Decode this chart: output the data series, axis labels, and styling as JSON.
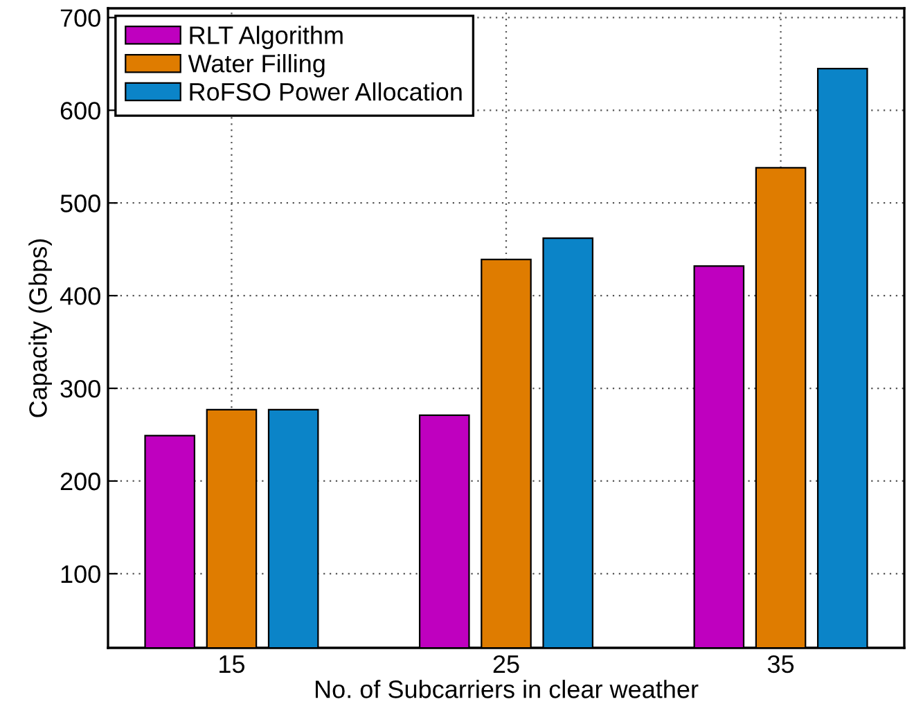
{
  "chart_data": {
    "type": "bar",
    "xlabel": "No. of Subcarriers in clear weather",
    "ylabel": "Capacity (Gbps)",
    "categories": [
      "15",
      "25",
      "35"
    ],
    "series": [
      {
        "name": "RLT Algorithm",
        "color": "#bf00bf",
        "values": [
          249,
          271,
          432
        ]
      },
      {
        "name": "Water Filling",
        "color": "#df7c00",
        "values": [
          277,
          439,
          538
        ]
      },
      {
        "name": "RoFSO Power Allocation",
        "color": "#0b84c8",
        "values": [
          277,
          462,
          645
        ]
      }
    ],
    "ylim": [
      20,
      710
    ],
    "yticks": [
      100,
      200,
      300,
      400,
      500,
      600,
      700
    ],
    "grid": true,
    "legend": "top left"
  }
}
